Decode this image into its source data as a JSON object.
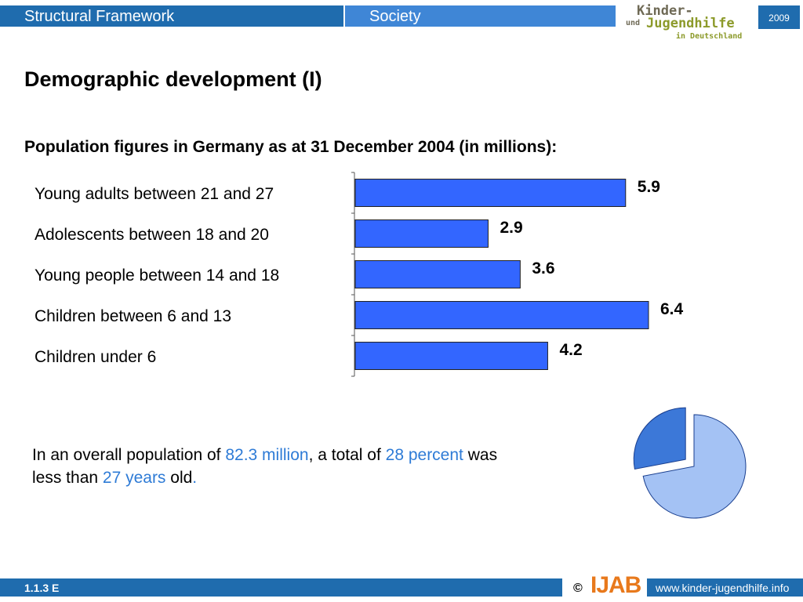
{
  "header": {
    "section": "Structural Framework",
    "topic": "Society",
    "logo": {
      "line1": "Kinder-",
      "line2a": "und",
      "line2": "Jugendhilfe",
      "line3": "in Deutschland"
    },
    "year": "2009"
  },
  "title": "Demographic development (I)",
  "subtitle": "Population figures in Germany as at 31 December 2004 (in millions):",
  "chart_data": [
    {
      "type": "bar",
      "orientation": "horizontal",
      "categories": [
        "Young adults between 21 and 27",
        "Adolescents between 18 and 20",
        "Young people between 14 and 18",
        "Children between 6 and 13",
        "Children under 6"
      ],
      "values": [
        5.9,
        2.9,
        3.6,
        6.4,
        4.2
      ],
      "value_labels": [
        "5.9",
        "2.9",
        "3.6",
        "6.4",
        "4.2"
      ],
      "xlim": [
        0,
        6.4
      ],
      "bar_color": "#3366ff",
      "grid": false
    },
    {
      "type": "pie",
      "values": [
        72,
        28
      ],
      "exploded": [
        false,
        true
      ],
      "colors": [
        "#a4c2f4",
        "#3c78d8"
      ]
    }
  ],
  "summary": {
    "p1": "In an overall  population of ",
    "h1": "82.3 million",
    "p2": ", a total of ",
    "h2": "28 percent",
    "p3": " was less than ",
    "h3": "27 years",
    "p4": " old",
    "h4": "."
  },
  "footer": {
    "slide_id": "1.1.3 E",
    "copyright": "©",
    "publisher_logo": "IJAB",
    "website": "www.kinder-jugendhilfe.info"
  },
  "colors": {
    "header_blue": "#1f6cae",
    "header_light": "#3f86d6",
    "highlight": "#2e7bd6"
  }
}
